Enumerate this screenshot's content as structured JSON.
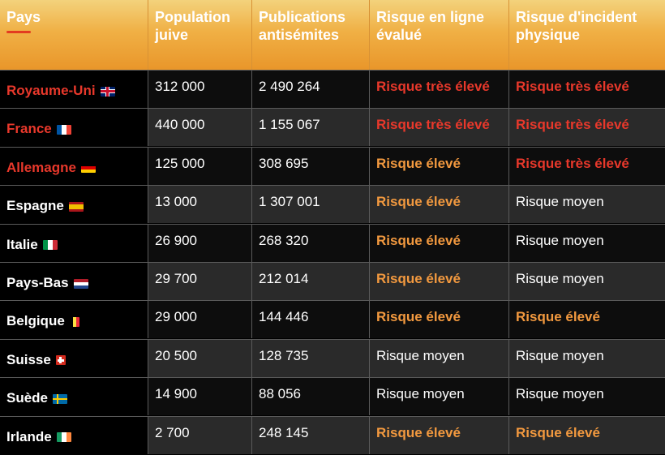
{
  "header": {
    "col_country": "Pays",
    "col_population": [
      "Population",
      "juive"
    ],
    "col_publications": [
      "Publications",
      "antisémites"
    ],
    "col_online_risk": [
      "Risque en ligne",
      "évalué"
    ],
    "col_physical_risk": [
      "Risque d'incident",
      "physique"
    ]
  },
  "colors": {
    "header_orange": "#f0b045",
    "risk_very_high": "#e8382b",
    "risk_high": "#f2993f",
    "risk_medium": "#ffffff"
  },
  "rows": [
    {
      "country": "Royaume-Uni",
      "flag": "flag-uk-icon",
      "highlight": true,
      "population": "312 000",
      "publications": "2 490 264",
      "online_risk": "Risque très élevé",
      "online_level": "red",
      "physical_risk": "Risque très élevé",
      "physical_level": "red"
    },
    {
      "country": "France",
      "flag": "flag-france-icon",
      "highlight": true,
      "population": "440 000",
      "publications": "1 155 067",
      "online_risk": "Risque très élevé",
      "online_level": "red",
      "physical_risk": "Risque très élevé",
      "physical_level": "red"
    },
    {
      "country": "Allemagne",
      "flag": "flag-germany-icon",
      "highlight": true,
      "population": "125 000",
      "publications": "308 695",
      "online_risk": "Risque élevé",
      "online_level": "orange",
      "physical_risk": "Risque très élevé",
      "physical_level": "red"
    },
    {
      "country": "Espagne",
      "flag": "flag-spain-icon",
      "highlight": false,
      "population": "13 000",
      "publications": "1 307 001",
      "online_risk": "Risque élevé",
      "online_level": "orange",
      "physical_risk": "Risque moyen",
      "physical_level": "white"
    },
    {
      "country": "Italie",
      "flag": "flag-italy-icon",
      "highlight": false,
      "population": "26 900",
      "publications": "268 320",
      "online_risk": "Risque élevé",
      "online_level": "orange",
      "physical_risk": "Risque moyen",
      "physical_level": "white"
    },
    {
      "country": "Pays-Bas",
      "flag": "flag-netherlands-icon",
      "highlight": false,
      "population": "29 700",
      "publications": "212 014",
      "online_risk": "Risque élevé",
      "online_level": "orange",
      "physical_risk": "Risque moyen",
      "physical_level": "white"
    },
    {
      "country": "Belgique",
      "flag": "flag-belgium-icon",
      "highlight": false,
      "population": "29 000",
      "publications": "144 446",
      "online_risk": "Risque élevé",
      "online_level": "orange",
      "physical_risk": "Risque élevé",
      "physical_level": "orange"
    },
    {
      "country": "Suisse",
      "flag": "flag-switzerland-icon",
      "highlight": false,
      "population": "20 500",
      "publications": "128 735",
      "online_risk": "Risque moyen",
      "online_level": "white",
      "physical_risk": "Risque moyen",
      "physical_level": "white"
    },
    {
      "country": "Suède",
      "flag": "flag-sweden-icon",
      "highlight": false,
      "population": "14 900",
      "publications": "88 056",
      "online_risk": "Risque moyen",
      "online_level": "white",
      "physical_risk": "Risque moyen",
      "physical_level": "white"
    },
    {
      "country": "Irlande",
      "flag": "flag-ireland-icon",
      "highlight": false,
      "population": "2 700",
      "publications": "248 145",
      "online_risk": "Risque élevé",
      "online_level": "orange",
      "physical_risk": "Risque élevé",
      "physical_level": "orange"
    }
  ]
}
